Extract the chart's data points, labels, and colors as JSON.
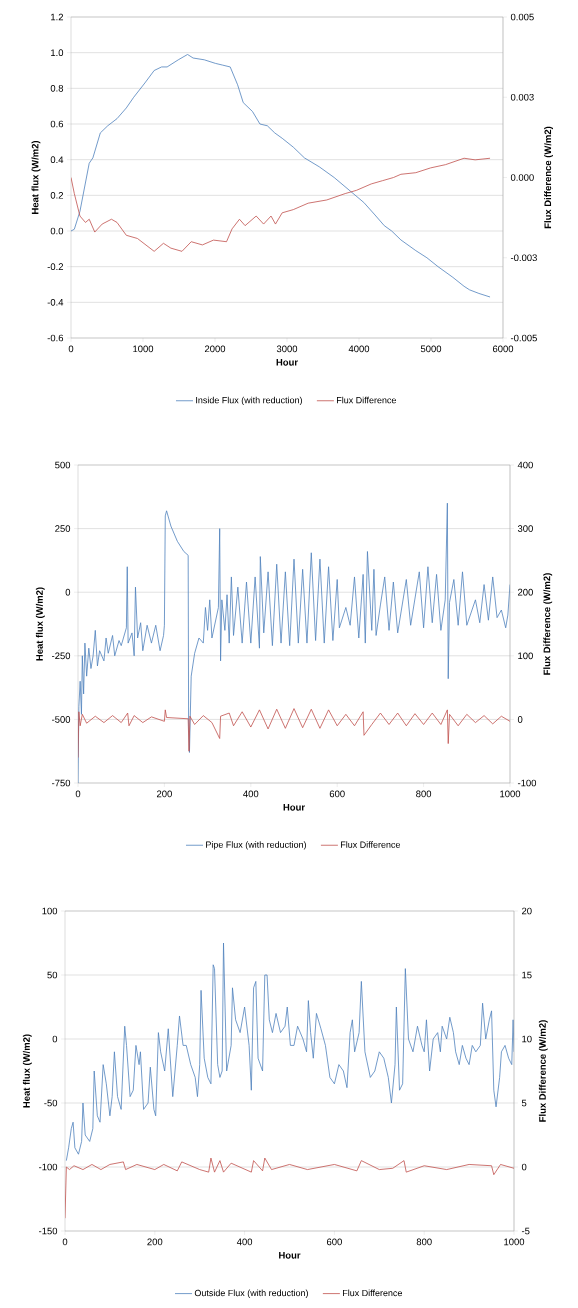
{
  "chart_data": [
    {
      "type": "line",
      "xlabel": "Hour",
      "ylabel": "Heat flux (W/m2)",
      "y2label": "Flux Difference (W/m2)",
      "xlim": [
        0,
        6000
      ],
      "xticks": [
        0,
        1000,
        2000,
        3000,
        4000,
        5000,
        6000
      ],
      "ylim": [
        -0.6,
        1.2
      ],
      "yticks": [
        -0.6,
        -0.4,
        -0.2,
        {
          "value": 0,
          "label": "0.0"
        },
        0.2,
        0.4,
        0.6,
        0.8,
        {
          "value": 1,
          "label": "1.0"
        },
        1.2
      ],
      "y2lim": [
        -0.005,
        0.005
      ],
      "y2ticks": [
        -0.005,
        {
          "value": -0.0025,
          "label": "-0.003"
        },
        {
          "value": 0,
          "label": "0.000"
        },
        {
          "value": 0.0025,
          "label": "0.003"
        },
        0.005
      ],
      "grid": "y",
      "legend": "bottom",
      "series": [
        {
          "name": "Inside Flux (with reduction)",
          "color": "#4f81bd",
          "x": [
            0,
            46,
            124,
            253,
            304,
            407,
            510,
            639,
            768,
            871,
            1026,
            1155,
            1258,
            1335,
            1490,
            1619,
            1696,
            1851,
            2005,
            2108,
            2211,
            2314,
            2392,
            2521,
            2624,
            2727,
            2830,
            2933,
            3088,
            3242,
            3448,
            3655,
            3861,
            4067,
            4222,
            4351,
            4454,
            4582,
            4789,
            4943,
            5098,
            5304,
            5459,
            5536,
            5665,
            5820
          ],
          "values": [
            0.0,
            0.01,
            0.11,
            0.38,
            0.41,
            0.55,
            0.59,
            0.63,
            0.69,
            0.75,
            0.83,
            0.9,
            0.92,
            0.92,
            0.96,
            0.99,
            0.97,
            0.96,
            0.94,
            0.93,
            0.92,
            0.82,
            0.72,
            0.67,
            0.6,
            0.59,
            0.55,
            0.52,
            0.47,
            0.41,
            0.36,
            0.3,
            0.23,
            0.16,
            0.09,
            0.03,
            0.0,
            -0.05,
            -0.11,
            -0.15,
            -0.2,
            -0.26,
            -0.31,
            -0.33,
            -0.35,
            -0.37
          ]
        },
        {
          "name": "Flux Difference",
          "color": "#c0504d",
          "axis": "y2",
          "x": [
            0,
            46,
            124,
            201,
            253,
            330,
            433,
            562,
            639,
            768,
            923,
            1155,
            1284,
            1387,
            1541,
            1670,
            1825,
            1979,
            2160,
            2237,
            2340,
            2418,
            2572,
            2675,
            2778,
            2840,
            2933,
            3088,
            3294,
            3552,
            3809,
            3964,
            4170,
            4325,
            4479,
            4582,
            4789,
            4995,
            5201,
            5459,
            5613,
            5820
          ],
          "values": [
            0.0,
            -0.0005,
            -0.0012,
            -0.0014,
            -0.0013,
            -0.0017,
            -0.00145,
            -0.0013,
            -0.0014,
            -0.0018,
            -0.0019,
            -0.0023,
            -0.00205,
            -0.0022,
            -0.0023,
            -0.002,
            -0.0021,
            -0.00195,
            -0.002,
            -0.0016,
            -0.0013,
            -0.0015,
            -0.0012,
            -0.00145,
            -0.0012,
            -0.00145,
            -0.0011,
            -0.001,
            -0.0008,
            -0.0007,
            -0.0005,
            -0.0004,
            -0.0002,
            -0.0001,
            0.0,
            0.0001,
            0.00015,
            0.0003,
            0.0004,
            0.0006,
            0.00055,
            0.0006
          ]
        }
      ]
    },
    {
      "type": "line",
      "xlabel": "Hour",
      "ylabel": "Heat flux (W/m2)",
      "y2label": "Flux Difference (W/m2)",
      "xlim": [
        0,
        1000
      ],
      "xticks": [
        0,
        200,
        400,
        600,
        800,
        1000
      ],
      "ylim": [
        -750,
        500
      ],
      "yticks": [
        -750,
        -500,
        -250,
        0,
        250,
        500
      ],
      "y2lim": [
        -100,
        400
      ],
      "y2ticks": [
        -100,
        0,
        100,
        200,
        300,
        400
      ],
      "grid": "y",
      "legend": "bottom",
      "series": [
        {
          "name": "Pipe Flux (with reduction)",
          "color": "#4f81bd",
          "x": [
            0,
            2,
            5,
            8,
            10,
            13,
            16,
            20,
            25,
            30,
            35,
            40,
            45,
            50,
            60,
            65,
            70,
            80,
            85,
            95,
            100,
            112,
            114,
            116,
            125,
            130,
            133,
            138,
            145,
            150,
            160,
            170,
            180,
            190,
            198,
            200,
            202,
            205,
            215,
            230,
            245,
            255,
            256,
            258,
            262,
            270,
            280,
            290,
            295,
            300,
            305,
            310,
            325,
            328,
            330,
            333,
            340,
            345,
            350,
            355,
            360,
            370,
            380,
            390,
            400,
            410,
            420,
            422,
            430,
            440,
            450,
            460,
            470,
            480,
            490,
            500,
            510,
            520,
            530,
            540,
            550,
            560,
            570,
            580,
            590,
            600,
            605,
            620,
            630,
            640,
            650,
            660,
            665,
            670,
            680,
            685,
            690,
            700,
            710,
            720,
            730,
            740,
            760,
            770,
            790,
            800,
            810,
            820,
            830,
            840,
            850,
            855,
            857,
            860,
            870,
            880,
            890,
            900,
            920,
            930,
            940,
            950,
            960,
            970,
            980,
            990,
            995,
            1000
          ],
          "values": [
            -750,
            -450,
            -350,
            -480,
            -250,
            -400,
            -200,
            -330,
            -220,
            -300,
            -250,
            -150,
            -290,
            -230,
            -270,
            -180,
            -240,
            -170,
            -250,
            -190,
            -210,
            -140,
            100,
            -200,
            -160,
            -250,
            20,
            -180,
            -120,
            -230,
            -130,
            -200,
            -130,
            -230,
            -170,
            -130,
            300,
            320,
            260,
            200,
            160,
            145,
            -500,
            -630,
            -330,
            -240,
            -180,
            -200,
            -60,
            -150,
            -30,
            -180,
            -60,
            250,
            -270,
            -30,
            -150,
            -10,
            -200,
            60,
            -170,
            20,
            -200,
            40,
            -200,
            60,
            -220,
            140,
            -160,
            80,
            -210,
            110,
            -200,
            80,
            -210,
            130,
            -200,
            90,
            -200,
            155,
            -190,
            130,
            -200,
            100,
            -190,
            50,
            -140,
            -60,
            -130,
            60,
            -180,
            70,
            -200,
            160,
            -150,
            90,
            -170,
            -50,
            60,
            -150,
            40,
            -160,
            50,
            -130,
            80,
            -140,
            100,
            -120,
            70,
            -150,
            -30,
            350,
            -340,
            -40,
            50,
            -130,
            80,
            -130,
            -30,
            -120,
            30,
            -110,
            60,
            -100,
            -70,
            -140,
            -90,
            30
          ]
        },
        {
          "name": "Flux Difference",
          "color": "#c0504d",
          "axis": "y2",
          "x": [
            0,
            2,
            5,
            10,
            20,
            40,
            60,
            80,
            100,
            115,
            118,
            130,
            150,
            170,
            200,
            202,
            205,
            255,
            257,
            259,
            270,
            290,
            310,
            328,
            330,
            350,
            360,
            380,
            400,
            420,
            440,
            460,
            480,
            500,
            520,
            540,
            560,
            580,
            600,
            620,
            640,
            660,
            662,
            680,
            700,
            720,
            740,
            760,
            780,
            800,
            820,
            840,
            855,
            857,
            860,
            880,
            900,
            920,
            940,
            960,
            980,
            1000
          ],
          "values": [
            -60,
            12,
            -10,
            8,
            -6,
            5,
            -5,
            6,
            -5,
            10,
            -10,
            6,
            -5,
            4,
            -3,
            15,
            3,
            1,
            -50,
            5,
            -8,
            6,
            -5,
            -30,
            5,
            10,
            -10,
            12,
            -12,
            15,
            -15,
            16,
            -14,
            17,
            -13,
            16,
            -14,
            15,
            -10,
            8,
            -10,
            12,
            -25,
            -8,
            10,
            -8,
            10,
            -10,
            9,
            -8,
            10,
            -8,
            15,
            -38,
            8,
            -10,
            8,
            -5,
            6,
            -7,
            5,
            -3
          ]
        }
      ]
    },
    {
      "type": "line",
      "xlabel": "Hour",
      "ylabel": "Heat flux (W/m2)",
      "y2label": "Flux Difference (W/m2)",
      "xlim": [
        0,
        1000
      ],
      "xticks": [
        0,
        200,
        400,
        600,
        800,
        1000
      ],
      "ylim": [
        -150,
        100
      ],
      "yticks": [
        -150,
        -100,
        -50,
        0,
        50,
        100
      ],
      "y2lim": [
        -5,
        20
      ],
      "y2ticks": [
        -5,
        0,
        5,
        10,
        15,
        20
      ],
      "grid": "y",
      "legend": "bottom",
      "series": [
        {
          "name": "Outside Flux (with reduction)",
          "color": "#4f81bd",
          "x": [
            3,
            8,
            14,
            18,
            22,
            30,
            37,
            40,
            45,
            55,
            62,
            65,
            72,
            78,
            85,
            92,
            100,
            105,
            110,
            117,
            125,
            133,
            137,
            145,
            152,
            158,
            165,
            168,
            175,
            185,
            190,
            198,
            202,
            208,
            213,
            222,
            230,
            240,
            250,
            255,
            263,
            270,
            280,
            290,
            295,
            300,
            303,
            310,
            318,
            325,
            330,
            333,
            340,
            345,
            350,
            353,
            360,
            370,
            373,
            380,
            390,
            400,
            410,
            415,
            420,
            425,
            430,
            440,
            445,
            450,
            455,
            462,
            470,
            480,
            490,
            495,
            502,
            510,
            518,
            530,
            538,
            542,
            547,
            553,
            560,
            570,
            580,
            590,
            600,
            610,
            620,
            628,
            635,
            640,
            645,
            655,
            660,
            668,
            680,
            690,
            700,
            710,
            720,
            727,
            735,
            738,
            745,
            752,
            758,
            765,
            775,
            785,
            795,
            800,
            805,
            812,
            820,
            830,
            836,
            840,
            850,
            857,
            865,
            870,
            878,
            885,
            893,
            900,
            907,
            915,
            925,
            930,
            937,
            945,
            950,
            955,
            960,
            968,
            972,
            980,
            988,
            995,
            998,
            1000
          ],
          "values": [
            -95,
            -85,
            -70,
            -65,
            -85,
            -90,
            -80,
            -50,
            -75,
            -80,
            -70,
            -25,
            -60,
            -65,
            -20,
            -35,
            -60,
            -45,
            -10,
            -45,
            -55,
            10,
            -5,
            -45,
            -40,
            -5,
            -20,
            -10,
            -55,
            -50,
            -22,
            -55,
            -60,
            5,
            -10,
            -25,
            8,
            -45,
            -5,
            18,
            -5,
            -5,
            -20,
            -30,
            -45,
            -20,
            38,
            -15,
            -30,
            -35,
            58,
            55,
            -20,
            -30,
            -25,
            75,
            -25,
            -5,
            40,
            15,
            5,
            25,
            -5,
            -40,
            40,
            45,
            -15,
            -25,
            50,
            50,
            15,
            5,
            20,
            5,
            10,
            25,
            -5,
            -5,
            10,
            0,
            -10,
            30,
            5,
            -15,
            20,
            8,
            -5,
            -30,
            -35,
            -20,
            -25,
            -38,
            5,
            15,
            -10,
            5,
            45,
            -10,
            -30,
            -25,
            -10,
            -15,
            -30,
            -50,
            -20,
            25,
            -40,
            -35,
            55,
            0,
            -10,
            10,
            -5,
            -10,
            15,
            -25,
            0,
            5,
            -10,
            10,
            0,
            17,
            5,
            -10,
            -20,
            -5,
            -15,
            -20,
            -5,
            -10,
            -5,
            28,
            0,
            15,
            22,
            -40,
            -53,
            -30,
            -10,
            -5,
            -15,
            -20,
            15,
            -10
          ]
        },
        {
          "name": "Flux Difference",
          "color": "#c0504d",
          "axis": "y2",
          "x": [
            0,
            3,
            10,
            20,
            40,
            60,
            80,
            100,
            130,
            135,
            160,
            200,
            220,
            250,
            260,
            300,
            320,
            325,
            333,
            345,
            353,
            370,
            415,
            420,
            440,
            445,
            460,
            500,
            540,
            600,
            650,
            660,
            700,
            730,
            755,
            760,
            800,
            850,
            900,
            950,
            955,
            970,
            1000
          ],
          "values": [
            -4,
            0,
            -0.2,
            0.1,
            -0.2,
            0.2,
            -0.2,
            0.2,
            0.4,
            -0.2,
            0.2,
            -0.2,
            0.2,
            -0.3,
            0.4,
            -0.2,
            -0.4,
            0.7,
            -0.4,
            0.5,
            -0.4,
            0.3,
            -0.4,
            0.5,
            -0.3,
            0.7,
            -0.2,
            0.2,
            -0.2,
            0.2,
            -0.3,
            0.5,
            -0.2,
            -0.1,
            0.5,
            -0.4,
            0.1,
            -0.2,
            0.2,
            0.1,
            -0.6,
            0.2,
            -0.1
          ]
        }
      ]
    }
  ]
}
